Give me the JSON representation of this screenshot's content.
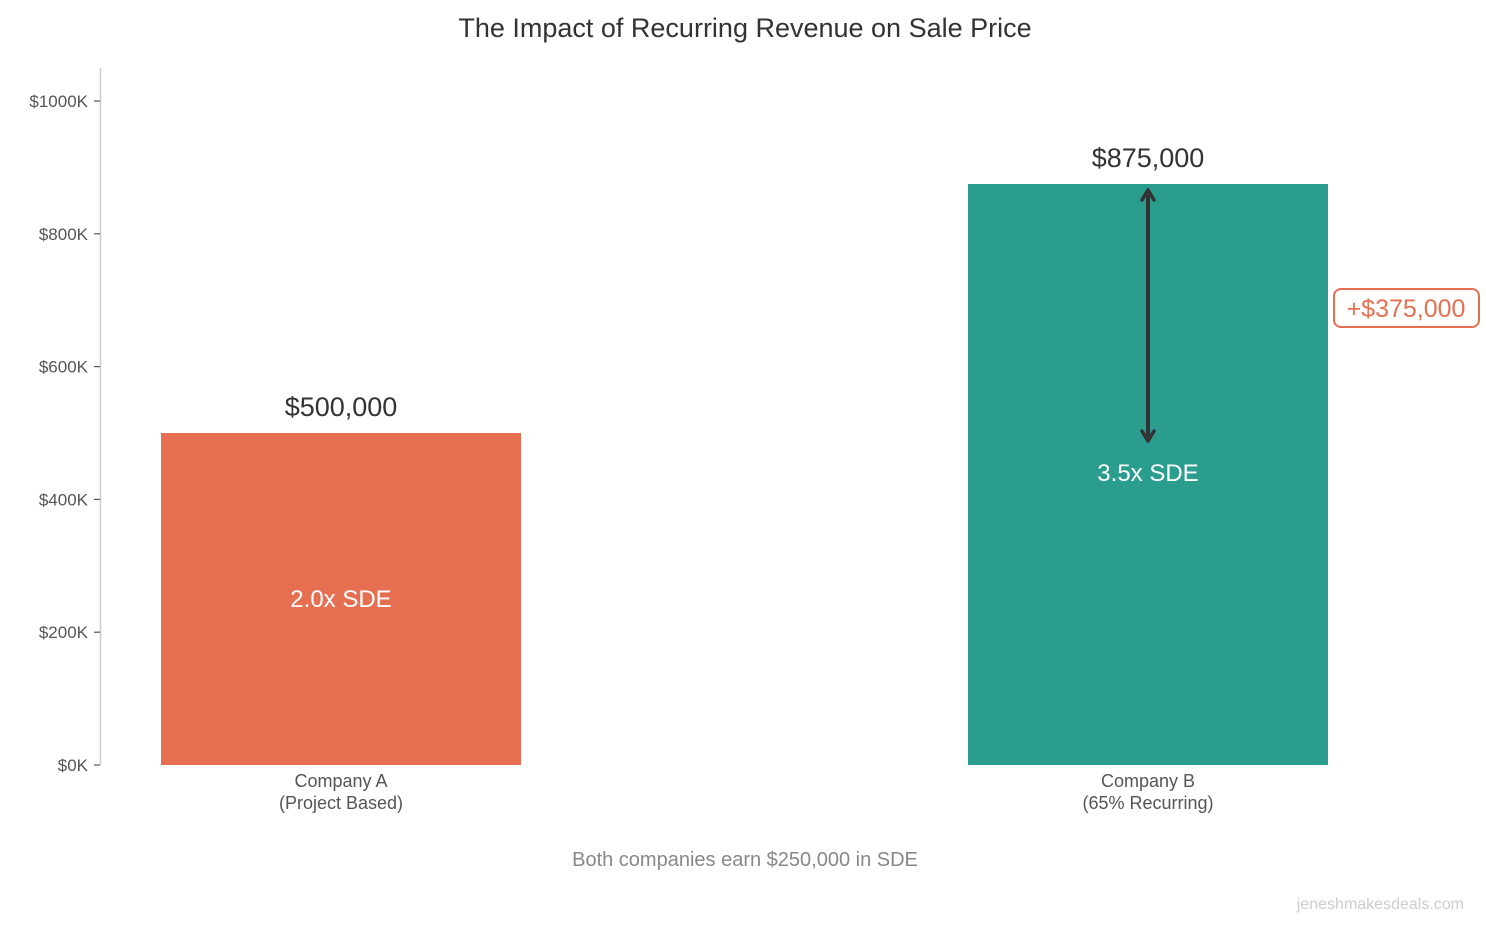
{
  "chart_data": {
    "type": "bar",
    "title": "The Impact of Recurring Revenue on Sale Price",
    "categories": [
      "Company A\n(Project Based)",
      "Company B\n(65% Recurring)"
    ],
    "values": [
      500000,
      875000
    ],
    "value_labels": [
      "$500,000",
      "$875,000"
    ],
    "inner_labels": [
      "2.0x SDE",
      "3.5x SDE"
    ],
    "colors": [
      "#E76F51",
      "#2A9D8F"
    ],
    "ylim": [
      0,
      1050000
    ],
    "yticks": [
      0,
      200000,
      400000,
      600000,
      800000,
      1000000
    ],
    "ytick_labels": [
      "$0K",
      "$200K",
      "$400K",
      "$600K",
      "$800K",
      "$1000K"
    ],
    "xlabel": "Both companies earn $250,000 in SDE",
    "ylabel": "",
    "grid": false,
    "annotation": {
      "text": "+$375,000",
      "from": 500000,
      "to": 875000,
      "color": "#E76F51",
      "arrow_color": "#333333"
    },
    "watermark": "jeneshmakesdeals.com"
  }
}
